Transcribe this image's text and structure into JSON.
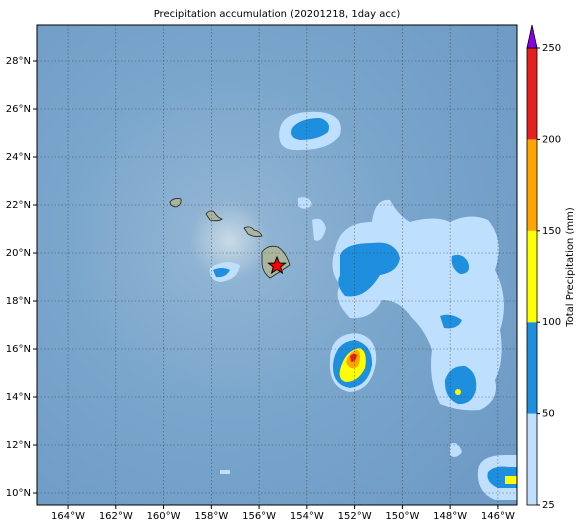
{
  "map": {
    "title": "Precipitation accumulation (20201218, 1day acc)",
    "xlim": [
      -165.3,
      -145.2
    ],
    "ylim": [
      9.5,
      29.5
    ],
    "xticks": [
      {
        "value": -164,
        "label": "164°W"
      },
      {
        "value": -162,
        "label": "162°W"
      },
      {
        "value": -160,
        "label": "160°W"
      },
      {
        "value": -158,
        "label": "158°W"
      },
      {
        "value": -156,
        "label": "156°W"
      },
      {
        "value": -154,
        "label": "154°W"
      },
      {
        "value": -152,
        "label": "152°W"
      },
      {
        "value": -150,
        "label": "150°W"
      },
      {
        "value": -148,
        "label": "148°W"
      },
      {
        "value": -146,
        "label": "146°W"
      }
    ],
    "yticks": [
      {
        "value": 10,
        "label": "10°N"
      },
      {
        "value": 12,
        "label": "12°N"
      },
      {
        "value": 14,
        "label": "14°N"
      },
      {
        "value": 16,
        "label": "16°N"
      },
      {
        "value": 18,
        "label": "18°N"
      },
      {
        "value": 20,
        "label": "20°N"
      },
      {
        "value": 22,
        "label": "22°N"
      },
      {
        "value": 24,
        "label": "24°N"
      },
      {
        "value": 26,
        "label": "26°N"
      },
      {
        "value": 28,
        "label": "28°N"
      }
    ],
    "colorbar": {
      "label": "Total Precipitation (mm)",
      "levels": [
        25,
        50,
        100,
        150,
        200,
        250
      ],
      "colors": [
        "#bfdfff",
        "#1e8fdf",
        "#ffff00",
        "#ffa500",
        "#e52020"
      ],
      "extend_color": "#8a00e6"
    }
  }
}
